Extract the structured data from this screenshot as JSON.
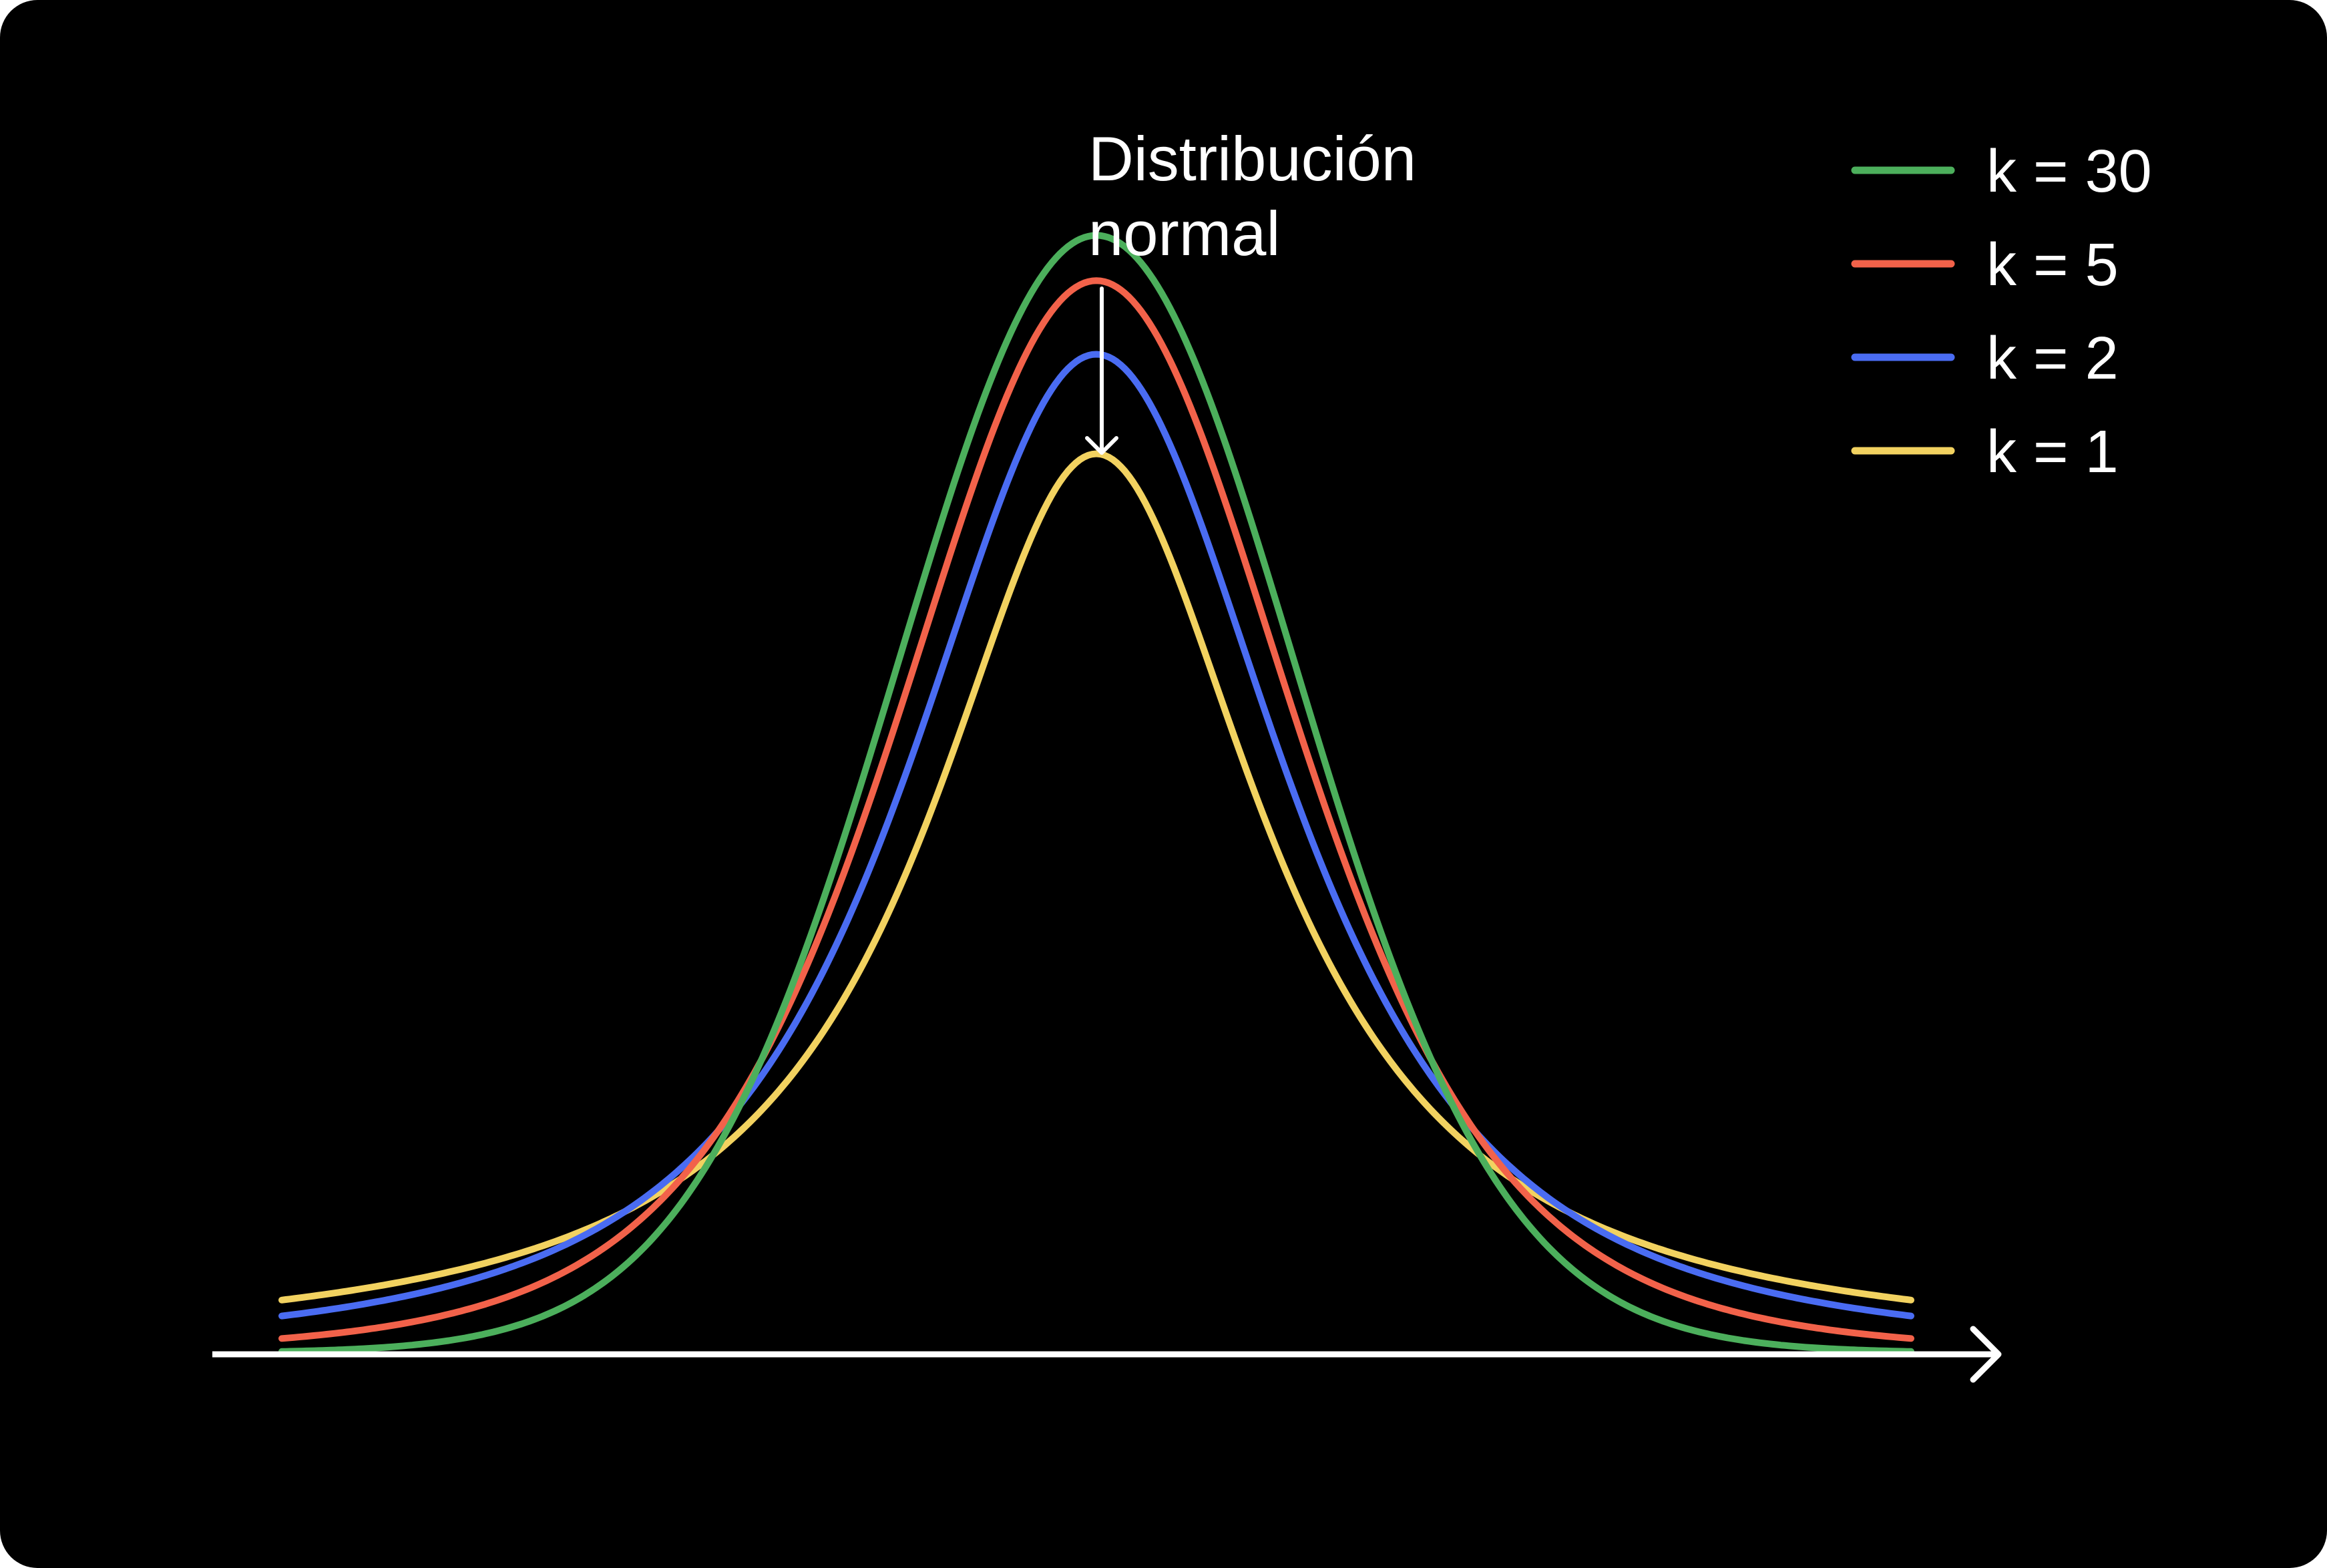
{
  "colors": {
    "background": "#000000",
    "axis": "#ffffff",
    "text": "#ffffff"
  },
  "annotation": {
    "line1": "Distribución",
    "line2": "normal"
  },
  "chart_data": {
    "type": "line",
    "title": "",
    "xlabel": "",
    "ylabel": "",
    "x_range": [
      -4,
      4
    ],
    "grid": false,
    "legend_position": "top-right",
    "series": [
      {
        "name": "k = 30",
        "df": 30,
        "color": "#4caf5c"
      },
      {
        "name": "k = 5",
        "df": 5,
        "color": "#f2624a"
      },
      {
        "name": "k = 2",
        "df": 2,
        "color": "#4a6cf2"
      },
      {
        "name": "k = 1",
        "df": 1,
        "color": "#f2d260"
      }
    ]
  }
}
